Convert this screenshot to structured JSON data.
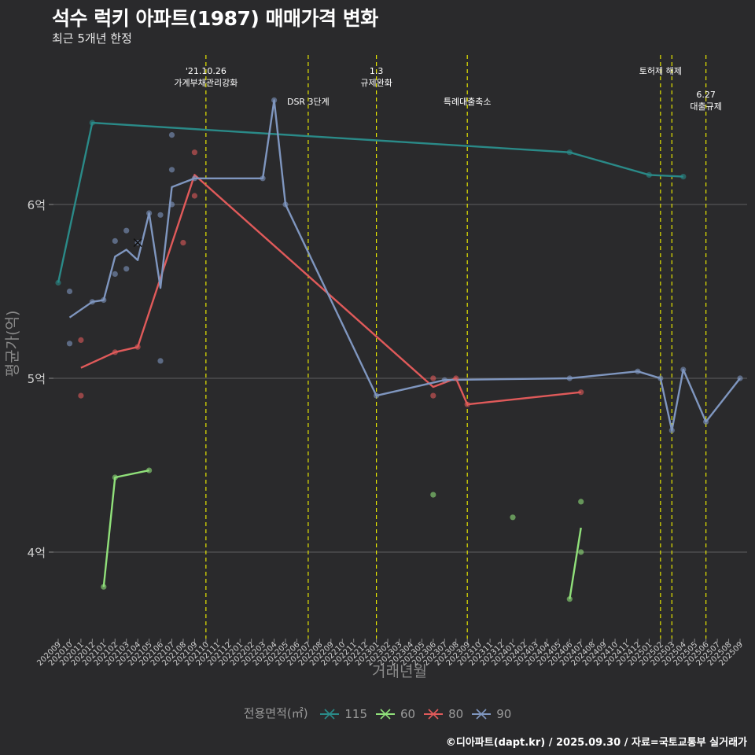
{
  "title": "석수 럭키 아파트(1987) 매매가격 변화",
  "subtitle": "최근 5개년 한정",
  "caption": "©디아파트(dapt.kr) / 2025.09.30 / 자료=국토교통부 실거래가",
  "chart_data": {
    "type": "line",
    "title": "석수 럭키 아파트(1987) 매매가격 변화",
    "subtitle": "최근 5개년 한정",
    "xlabel": "거래년월",
    "ylabel": "평균가(억)",
    "x_ticks": [
      "202009",
      "202010",
      "202011",
      "202012",
      "202101",
      "202102",
      "202103",
      "202104",
      "202105",
      "202106",
      "202107",
      "202108",
      "202109",
      "202110",
      "202111",
      "202112",
      "202201",
      "202202",
      "202203",
      "202204",
      "202205",
      "202206",
      "202207",
      "202208",
      "202209",
      "202210",
      "202211",
      "202212",
      "202301",
      "202302",
      "202303",
      "202304",
      "202305",
      "202306",
      "202307",
      "202308",
      "202309",
      "202310",
      "202311",
      "202312",
      "202401",
      "202402",
      "202403",
      "202404",
      "202405",
      "202406",
      "202407",
      "202408",
      "202409",
      "202410",
      "202411",
      "202412",
      "202501",
      "202502",
      "202503",
      "202504",
      "202505",
      "202506",
      "202507",
      "202508",
      "202509"
    ],
    "y_ticks": [
      {
        "value": 4,
        "label": "4억"
      },
      {
        "value": 5,
        "label": "5억"
      },
      {
        "value": 6,
        "label": "6억"
      }
    ],
    "ylim": [
      3.6,
      6.9
    ],
    "legend": {
      "title": "전용면적(㎡)",
      "position": "bottom"
    },
    "series": [
      {
        "name": "115",
        "color": "#2a8a88",
        "line": [
          [
            "202009",
            5.55
          ],
          [
            "202012",
            6.47
          ],
          [
            "202406",
            6.3
          ],
          [
            "202501",
            6.17
          ],
          [
            "202504",
            6.16
          ]
        ],
        "points": [
          [
            "202009",
            5.55
          ],
          [
            "202012",
            6.47
          ],
          [
            "202406",
            6.3
          ],
          [
            "202501",
            6.17
          ],
          [
            "202504",
            6.16
          ]
        ]
      },
      {
        "name": "60",
        "color": "#90e07a",
        "line": [
          [
            "202101",
            3.8
          ],
          [
            "202102",
            4.43
          ],
          [
            "202105",
            4.47
          ],
          [
            "202406",
            3.73
          ],
          [
            "202407",
            4.14
          ]
        ],
        "breaks_after": [
          2
        ],
        "points": [
          [
            "202101",
            3.8
          ],
          [
            "202102",
            4.43
          ],
          [
            "202105",
            4.47
          ],
          [
            "202306",
            4.33
          ],
          [
            "202401",
            4.2
          ],
          [
            "202406",
            3.73
          ],
          [
            "202407",
            4.29
          ],
          [
            "202407",
            4.0
          ]
        ]
      },
      {
        "name": "80",
        "color": "#e05a5a",
        "line": [
          [
            "202011",
            5.06
          ],
          [
            "202102",
            5.15
          ],
          [
            "202104",
            5.18
          ],
          [
            "202109",
            6.17
          ],
          [
            "202306",
            4.95
          ],
          [
            "202308",
            5.0
          ],
          [
            "202309",
            4.85
          ],
          [
            "202407",
            4.92
          ]
        ],
        "points": [
          [
            "202011",
            5.22
          ],
          [
            "202011",
            4.9
          ],
          [
            "202102",
            5.15
          ],
          [
            "202104",
            5.18
          ],
          [
            "202108",
            5.78
          ],
          [
            "202109",
            6.3
          ],
          [
            "202109",
            6.05
          ],
          [
            "202306",
            5.0
          ],
          [
            "202306",
            4.9
          ],
          [
            "202308",
            5.0
          ],
          [
            "202309",
            4.85
          ],
          [
            "202407",
            4.92
          ]
        ]
      },
      {
        "name": "90",
        "color": "#7f96bf",
        "line": [
          [
            "202010",
            5.35
          ],
          [
            "202012",
            5.44
          ],
          [
            "202101",
            5.45
          ],
          [
            "202102",
            5.7
          ],
          [
            "202103",
            5.74
          ],
          [
            "202104",
            5.68
          ],
          [
            "202105",
            5.95
          ],
          [
            "202106",
            5.52
          ],
          [
            "202107",
            6.1
          ],
          [
            "202109",
            6.15
          ],
          [
            "202203",
            6.15
          ],
          [
            "202204",
            6.6
          ],
          [
            "202205",
            6.0
          ],
          [
            "202301",
            4.9
          ],
          [
            "202307",
            4.99
          ],
          [
            "202406",
            5.0
          ],
          [
            "202412",
            5.04
          ],
          [
            "202502",
            5.0
          ],
          [
            "202503",
            4.7
          ],
          [
            "202504",
            5.05
          ],
          [
            "202506",
            4.75
          ],
          [
            "202509",
            5.0
          ]
        ],
        "points": [
          [
            "202010",
            5.5
          ],
          [
            "202010",
            5.2
          ],
          [
            "202012",
            5.44
          ],
          [
            "202101",
            5.45
          ],
          [
            "202102",
            5.79
          ],
          [
            "202102",
            5.6
          ],
          [
            "202103",
            5.85
          ],
          [
            "202103",
            5.63
          ],
          [
            "202104",
            5.78
          ],
          [
            "202105",
            5.95
          ],
          [
            "202106",
            5.94
          ],
          [
            "202106",
            5.1
          ],
          [
            "202107",
            6.4
          ],
          [
            "202107",
            6.2
          ],
          [
            "202107",
            6.0
          ],
          [
            "202109",
            6.15
          ],
          [
            "202203",
            6.15
          ],
          [
            "202204",
            6.6
          ],
          [
            "202205",
            6.0
          ],
          [
            "202301",
            4.9
          ],
          [
            "202307",
            4.99
          ],
          [
            "202406",
            5.0
          ],
          [
            "202412",
            5.04
          ],
          [
            "202502",
            5.0
          ],
          [
            "202503",
            4.7
          ],
          [
            "202504",
            5.05
          ],
          [
            "202506",
            4.75
          ],
          [
            "202509",
            5.0
          ]
        ]
      }
    ],
    "special_marker": {
      "x": "202104",
      "y": 5.78,
      "symbol": "x"
    },
    "annotations": [
      {
        "x": "202110",
        "text": [
          "'21.10.26",
          "가계부채관리강화"
        ],
        "level": 1
      },
      {
        "x": "202207",
        "text": [
          "DSR 3단계"
        ],
        "level": 2
      },
      {
        "x": "202301",
        "text": [
          "1.3",
          "규제완화"
        ],
        "level": 1
      },
      {
        "x": "202309",
        "text": [
          "특례대출축소"
        ],
        "level": 2
      },
      {
        "x": "202502",
        "text": [
          "토허제 해제"
        ],
        "level": 1
      },
      {
        "x": "202503",
        "text": [],
        "level": 1
      },
      {
        "x": "202506",
        "text": [
          "6.27",
          "대출규제"
        ],
        "level": 3
      }
    ]
  }
}
